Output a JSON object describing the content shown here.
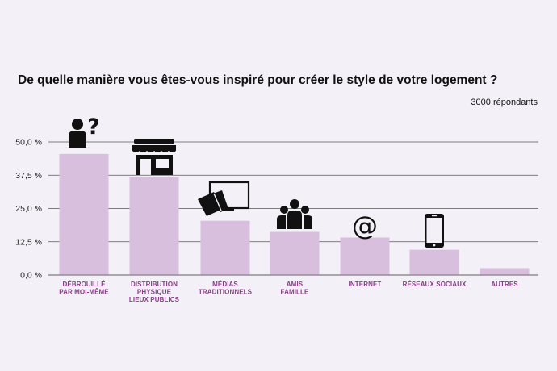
{
  "chart_data": {
    "type": "bar",
    "title": "De quelle manière vous êtes-vous inspiré pour créer le style de votre logement ?",
    "subtitle": "3000 répondants",
    "xlabel": "",
    "ylabel": "",
    "ylim": [
      0,
      50
    ],
    "yticks": [
      {
        "value": 0,
        "label": "0,0 %"
      },
      {
        "value": 12.5,
        "label": "12,5 %"
      },
      {
        "value": 25,
        "label": "25,0 %"
      },
      {
        "value": 37.5,
        "label": "37,5 %"
      },
      {
        "value": 50,
        "label": "50,0 %"
      }
    ],
    "categories": [
      [
        "DÉBROUILLÉ",
        "PAR MOI-MÊME"
      ],
      [
        "DISTRIBUTION",
        "PHYSIQUE",
        "LIEUX PUBLICS"
      ],
      [
        "MÉDIAS",
        "TRADITIONNELS"
      ],
      [
        "AMIS",
        "FAMILLE"
      ],
      [
        "INTERNET"
      ],
      [
        "RÉSEAUX SOCIAUX"
      ],
      [
        "AUTRES"
      ]
    ],
    "values": [
      45.5,
      36.7,
      20.4,
      16.2,
      14.1,
      9.5,
      2.6
    ],
    "icons": [
      "person-question-icon",
      "store-icon",
      "media-icon",
      "family-icon",
      "at-icon",
      "smartphone-icon",
      ""
    ],
    "internet_icon_glyph": "@",
    "colors": {
      "bar": "#d9bfde",
      "grid": "#555555",
      "label": "#8b3c89"
    },
    "grid": true
  }
}
